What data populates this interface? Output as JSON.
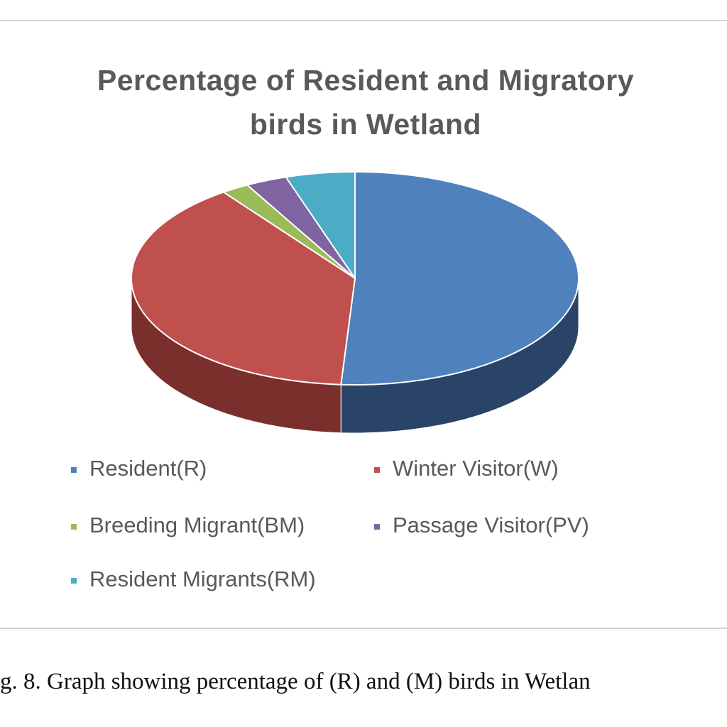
{
  "chart_data": {
    "type": "pie3d",
    "title": "Percentage of Resident and Migratory birds in Wetland",
    "categories": [
      "Resident(R)",
      "Winter Visitor(W)",
      "Breeding Migrant(BM)",
      "Passage Visitor(PV)",
      "Resident Migrants(RM)"
    ],
    "values": [
      51,
      39,
      2,
      3,
      5
    ],
    "colors": [
      "#4f81bd",
      "#c0504d",
      "#9bbb59",
      "#8064a2",
      "#4bacc6"
    ],
    "side_colors": [
      "#2a4467",
      "#7a2f2d",
      "#5f7535",
      "#4c3b62",
      "#2d6b7b"
    ],
    "legend": "bottom"
  },
  "caption": "g. 8. Graph showing percentage of (R) and (M) birds in Wetlan"
}
